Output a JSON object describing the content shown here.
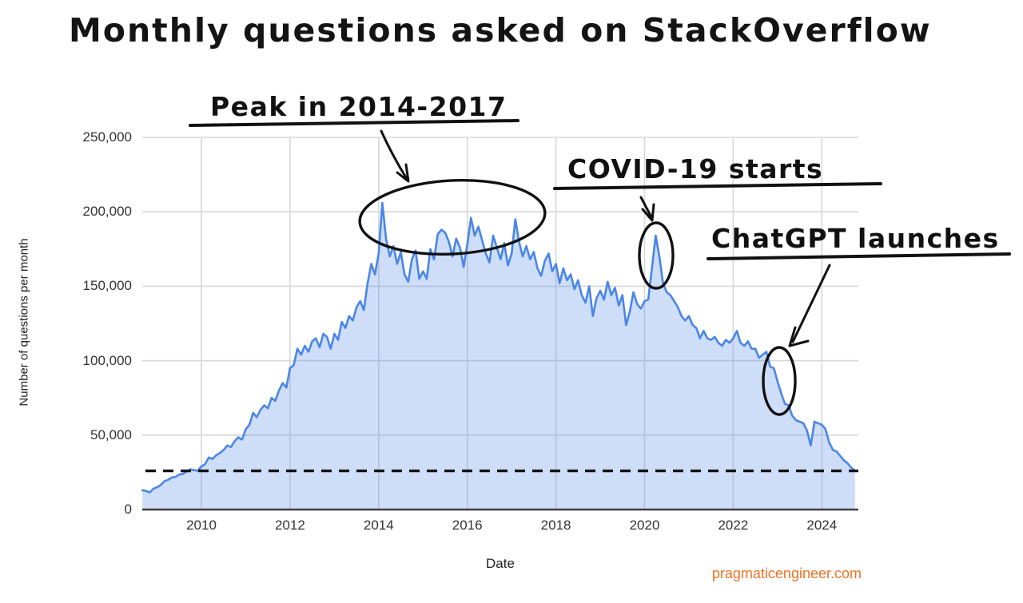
{
  "title": "Monthly questions asked on StackOverflow",
  "watermark": {
    "text": "pragmaticengineer.com",
    "color": "#ed7425"
  },
  "chart_data": {
    "type": "area",
    "title": "Monthly questions asked on StackOverflow",
    "xlabel": "Date",
    "ylabel": "Number of questions per month",
    "grid": true,
    "legend": "none",
    "x_domain_years": [
      2008.6667,
      2024.75
    ],
    "ylim": [
      0,
      250000
    ],
    "x_tick_values": [
      2010,
      2012,
      2014,
      2016,
      2018,
      2020,
      2022,
      2024
    ],
    "x_tick_labels": [
      "2010",
      "2012",
      "2014",
      "2016",
      "2018",
      "2020",
      "2022",
      "2024"
    ],
    "y_tick_values": [
      0,
      50000,
      100000,
      150000,
      200000,
      250000
    ],
    "y_tick_labels": [
      "0",
      "50,000",
      "100,000",
      "150,000",
      "200,000",
      "250,000"
    ],
    "series": [
      {
        "name": "Questions per month",
        "start": "2008-09",
        "frequency": "monthly",
        "values": [
          13000,
          12500,
          11500,
          14000,
          15000,
          16500,
          19000,
          20000,
          21500,
          22000,
          23500,
          24000,
          25500,
          27000,
          26500,
          26000,
          29000,
          30500,
          35000,
          34000,
          36500,
          38000,
          40000,
          43000,
          42000,
          46000,
          48500,
          47000,
          54000,
          57000,
          65000,
          62000,
          67000,
          70000,
          68000,
          75000,
          73000,
          80000,
          85000,
          82000,
          95000,
          97000,
          108000,
          104000,
          110000,
          106000,
          113000,
          115000,
          109000,
          118000,
          116000,
          108000,
          118000,
          114000,
          126000,
          122000,
          130000,
          127000,
          136000,
          140000,
          134000,
          152000,
          165000,
          158000,
          172000,
          206000,
          182000,
          170000,
          177000,
          165000,
          173000,
          158000,
          153000,
          168000,
          174000,
          155000,
          160000,
          155000,
          175000,
          168000,
          185000,
          188000,
          186000,
          180000,
          170000,
          182000,
          176000,
          163000,
          178000,
          196000,
          184000,
          190000,
          181000,
          172000,
          166000,
          184000,
          176000,
          168000,
          179000,
          164000,
          172000,
          195000,
          180000,
          170000,
          177000,
          168000,
          173000,
          162000,
          157000,
          167000,
          172000,
          160000,
          165000,
          152000,
          162000,
          154000,
          158000,
          148000,
          154000,
          144000,
          139000,
          150000,
          130000,
          142000,
          147000,
          141000,
          153000,
          144000,
          149000,
          137000,
          144000,
          124000,
          133000,
          146000,
          138000,
          135000,
          140000,
          141000,
          162000,
          184000,
          170000,
          152000,
          146000,
          144000,
          140000,
          136000,
          130000,
          127000,
          130000,
          124000,
          122000,
          115000,
          120000,
          115000,
          114000,
          116000,
          112000,
          110000,
          114000,
          112000,
          115000,
          120000,
          112000,
          110000,
          113000,
          108000,
          108000,
          102000,
          104000,
          106000,
          96000,
          95000,
          86000,
          78000,
          71000,
          70000,
          63000,
          60000,
          59000,
          58000,
          53000,
          43000,
          59000,
          58000,
          57000,
          54000,
          45000,
          40000,
          39000,
          36000,
          33000,
          31000,
          28000,
          26000
        ]
      }
    ],
    "reference_line": {
      "value": 26000,
      "style": "dashed"
    },
    "annotations": [
      {
        "label": "Peak in 2014-2017"
      },
      {
        "label": "COVID-19 starts"
      },
      {
        "label": "ChatGPT launches"
      }
    ],
    "fill_opacity": 0.27,
    "colors": {
      "line": "#4a86e8",
      "fill": "#cfdef8",
      "grid": "#d8d8d8",
      "axis": "#3f3f3f",
      "ink": "#111111",
      "watermark": "#ed7425"
    }
  }
}
